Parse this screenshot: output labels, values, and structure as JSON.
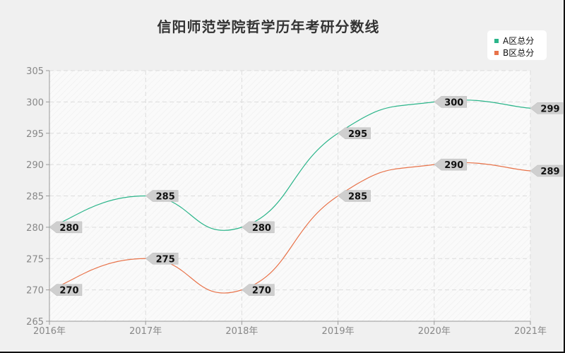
{
  "title": "信阳师范学院哲学历年考研分数线",
  "legend": [
    {
      "label": "A区总分",
      "color": "#2bb58a"
    },
    {
      "label": "B区总分",
      "color": "#e8734a"
    }
  ],
  "chart_data": {
    "type": "line",
    "title": "信阳师范学院哲学历年考研分数线",
    "categories": [
      "2016年",
      "2017年",
      "2018年",
      "2019年",
      "2020年",
      "2021年"
    ],
    "series": [
      {
        "name": "A区总分",
        "values": [
          280,
          285,
          280,
          295,
          300,
          299
        ],
        "color": "#2bb58a"
      },
      {
        "name": "B区总分",
        "values": [
          270,
          275,
          270,
          285,
          290,
          289
        ],
        "color": "#e8734a"
      }
    ],
    "xlabel": "",
    "ylabel": "",
    "ylim": [
      265,
      305
    ],
    "yticks": [
      265,
      270,
      275,
      280,
      285,
      290,
      295,
      300,
      305
    ],
    "grid": true,
    "legend_position": "top-right"
  }
}
